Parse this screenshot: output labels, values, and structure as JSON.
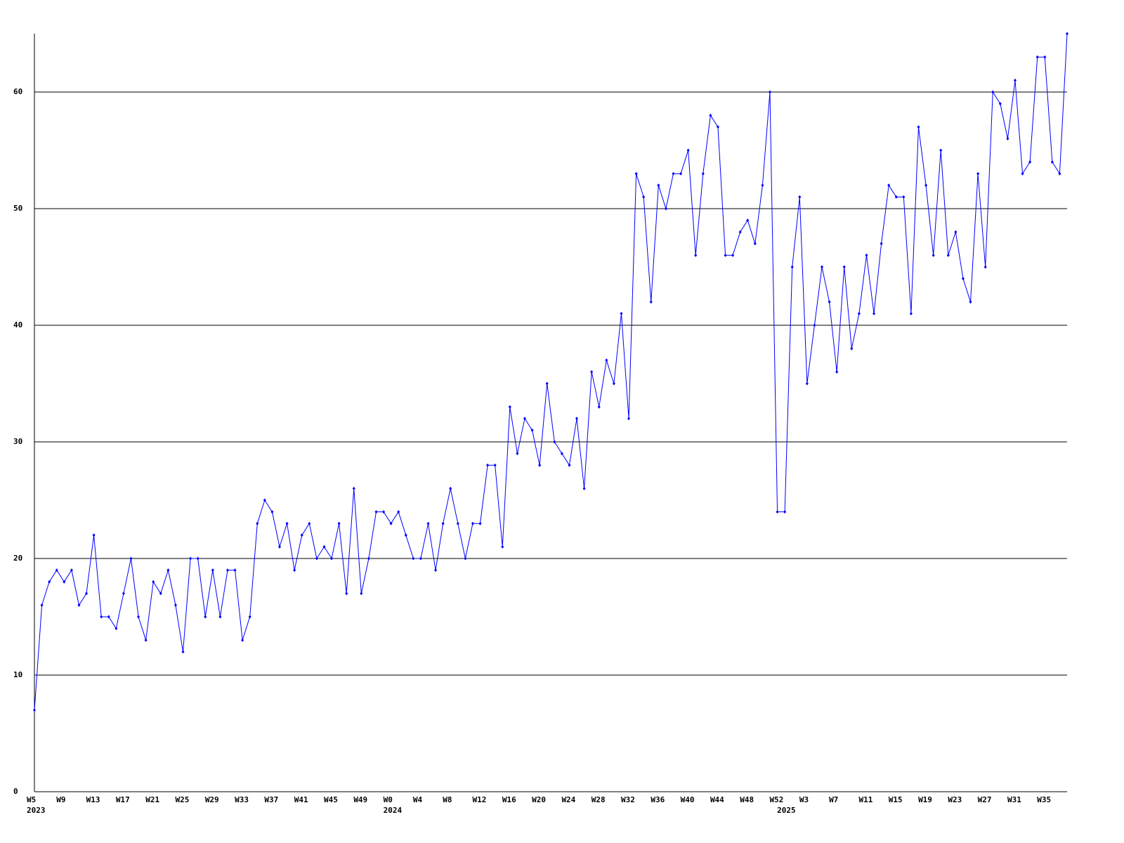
{
  "chart_data": {
    "type": "line",
    "categories": [
      "W5",
      null,
      null,
      null,
      "W9",
      null,
      null,
      null,
      "W13",
      null,
      null,
      null,
      "W17",
      null,
      null,
      null,
      "W21",
      null,
      null,
      null,
      "W25",
      null,
      null,
      null,
      "W29",
      null,
      null,
      null,
      "W33",
      null,
      null,
      null,
      "W37",
      null,
      null,
      null,
      "W41",
      null,
      null,
      null,
      "W45",
      null,
      null,
      null,
      "W49",
      null,
      null,
      null,
      "W0",
      null,
      null,
      null,
      "W4",
      null,
      null,
      null,
      "W8",
      null,
      null,
      null,
      "W12",
      null,
      null,
      null,
      "W16",
      null,
      null,
      null,
      "W20",
      null,
      null,
      null,
      "W24",
      null,
      null,
      null,
      "W28",
      null,
      null,
      null,
      "W32",
      null,
      null,
      null,
      "W36",
      null,
      null,
      null,
      "W40",
      null,
      null,
      null,
      "W44",
      null,
      null,
      null,
      "W48",
      null,
      null,
      null,
      "W52",
      null,
      null,
      null,
      "W3",
      null,
      null,
      null,
      "W7",
      null,
      null,
      null,
      "W11",
      null,
      null,
      null,
      "W15",
      null,
      null,
      null,
      "W19",
      null,
      null,
      null,
      "W23",
      null,
      null,
      null,
      "W27",
      null,
      null,
      null,
      "W31",
      null,
      null,
      null,
      "W35",
      null,
      null,
      null
    ],
    "years": [
      "2023",
      null,
      null,
      null,
      null,
      null,
      null,
      null,
      null,
      null,
      null,
      null,
      null,
      null,
      null,
      null,
      null,
      null,
      null,
      null,
      null,
      null,
      null,
      null,
      null,
      null,
      null,
      null,
      null,
      null,
      null,
      null,
      null,
      null,
      null,
      null,
      null,
      null,
      null,
      null,
      null,
      null,
      null,
      null,
      null,
      null,
      null,
      null,
      "2024",
      null,
      null,
      null,
      null,
      null,
      null,
      null,
      null,
      null,
      null,
      null,
      null,
      null,
      null,
      null,
      null,
      null,
      null,
      null,
      null,
      null,
      null,
      null,
      null,
      null,
      null,
      null,
      null,
      null,
      null,
      null,
      null,
      null,
      null,
      null,
      null,
      null,
      null,
      null,
      null,
      null,
      null,
      null,
      null,
      null,
      null,
      null,
      null,
      null,
      null,
      null,
      null,
      "2025",
      null,
      null,
      null,
      null,
      null,
      null,
      null,
      null,
      null,
      null,
      null,
      null,
      null,
      null,
      null,
      null,
      null,
      null,
      null,
      null,
      null,
      null,
      null,
      null,
      null,
      null,
      null,
      null,
      null,
      null,
      null,
      null,
      null,
      null,
      null,
      null,
      null,
      null
    ],
    "series": [
      {
        "color": "#0000ff",
        "values": [
          7,
          16,
          18,
          19,
          18,
          19,
          16,
          17,
          22,
          15,
          15,
          14,
          17,
          20,
          15,
          13,
          18,
          17,
          19,
          16,
          12,
          20,
          20,
          15,
          19,
          15,
          19,
          19,
          13,
          15,
          23,
          25,
          24,
          21,
          23,
          19,
          22,
          23,
          20,
          21,
          20,
          23,
          17,
          26,
          17,
          20,
          24,
          24,
          23,
          24,
          22,
          20,
          20,
          23,
          19,
          23,
          26,
          23,
          20,
          23,
          23,
          28,
          28,
          21,
          33,
          29,
          32,
          31,
          28,
          35,
          30,
          29,
          28,
          32,
          26,
          36,
          33,
          37,
          35,
          41,
          32,
          53,
          51,
          42,
          52,
          50,
          53,
          53,
          55,
          46,
          53,
          58,
          57,
          46,
          46,
          48,
          49,
          47,
          52,
          60,
          24,
          24,
          45,
          51,
          35,
          40,
          45,
          42,
          36,
          45,
          38,
          41,
          46,
          41,
          47,
          52,
          51,
          51,
          41,
          57,
          52,
          46,
          55,
          46,
          48,
          44,
          42,
          53,
          45,
          60,
          59,
          56,
          61,
          53,
          54,
          63,
          63,
          54,
          53,
          65
        ]
      }
    ],
    "ylim": [
      0,
      65
    ],
    "yticks": [
      0,
      10,
      20,
      30,
      40,
      50,
      60
    ],
    "grid": true
  }
}
